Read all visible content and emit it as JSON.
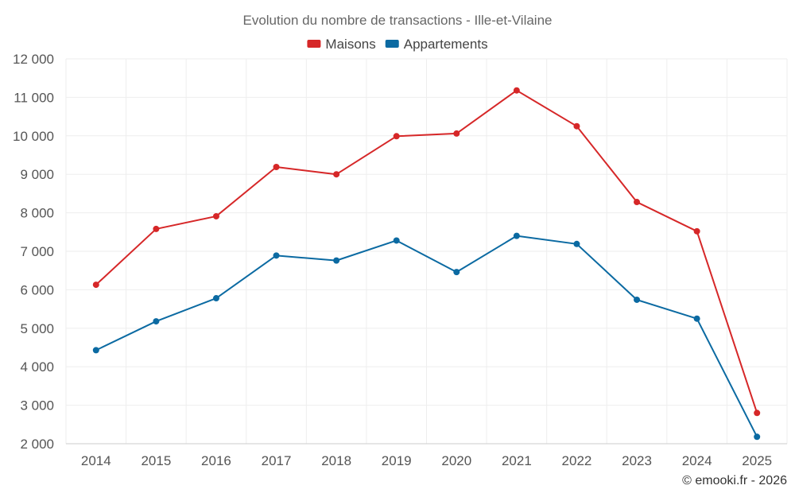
{
  "chart_data": {
    "type": "line",
    "title": "Evolution du nombre de transactions - Ille-et-Vilaine",
    "xlabel": "",
    "ylabel": "",
    "categories": [
      "2014",
      "2015",
      "2016",
      "2017",
      "2018",
      "2019",
      "2020",
      "2021",
      "2022",
      "2023",
      "2024",
      "2025"
    ],
    "ylim": [
      2000,
      12000
    ],
    "yticks": [
      2000,
      3000,
      4000,
      5000,
      6000,
      7000,
      8000,
      9000,
      10000,
      11000,
      12000
    ],
    "ytick_labels": [
      "2 000",
      "3 000",
      "4 000",
      "5 000",
      "6 000",
      "7 000",
      "8 000",
      "9 000",
      "10 000",
      "11 000",
      "12 000"
    ],
    "grid": true,
    "legend_position": "top-center",
    "series": [
      {
        "name": "Maisons",
        "color": "#d62728",
        "values": [
          6130,
          7580,
          7910,
          9190,
          9000,
          9990,
          10060,
          11180,
          10250,
          8280,
          7520,
          2800
        ]
      },
      {
        "name": "Appartements",
        "color": "#0b6aa2",
        "values": [
          4430,
          5180,
          5780,
          6890,
          6760,
          7280,
          6460,
          7400,
          7190,
          5740,
          5250,
          2180
        ]
      }
    ],
    "credit": "© emooki.fr - 2026"
  }
}
